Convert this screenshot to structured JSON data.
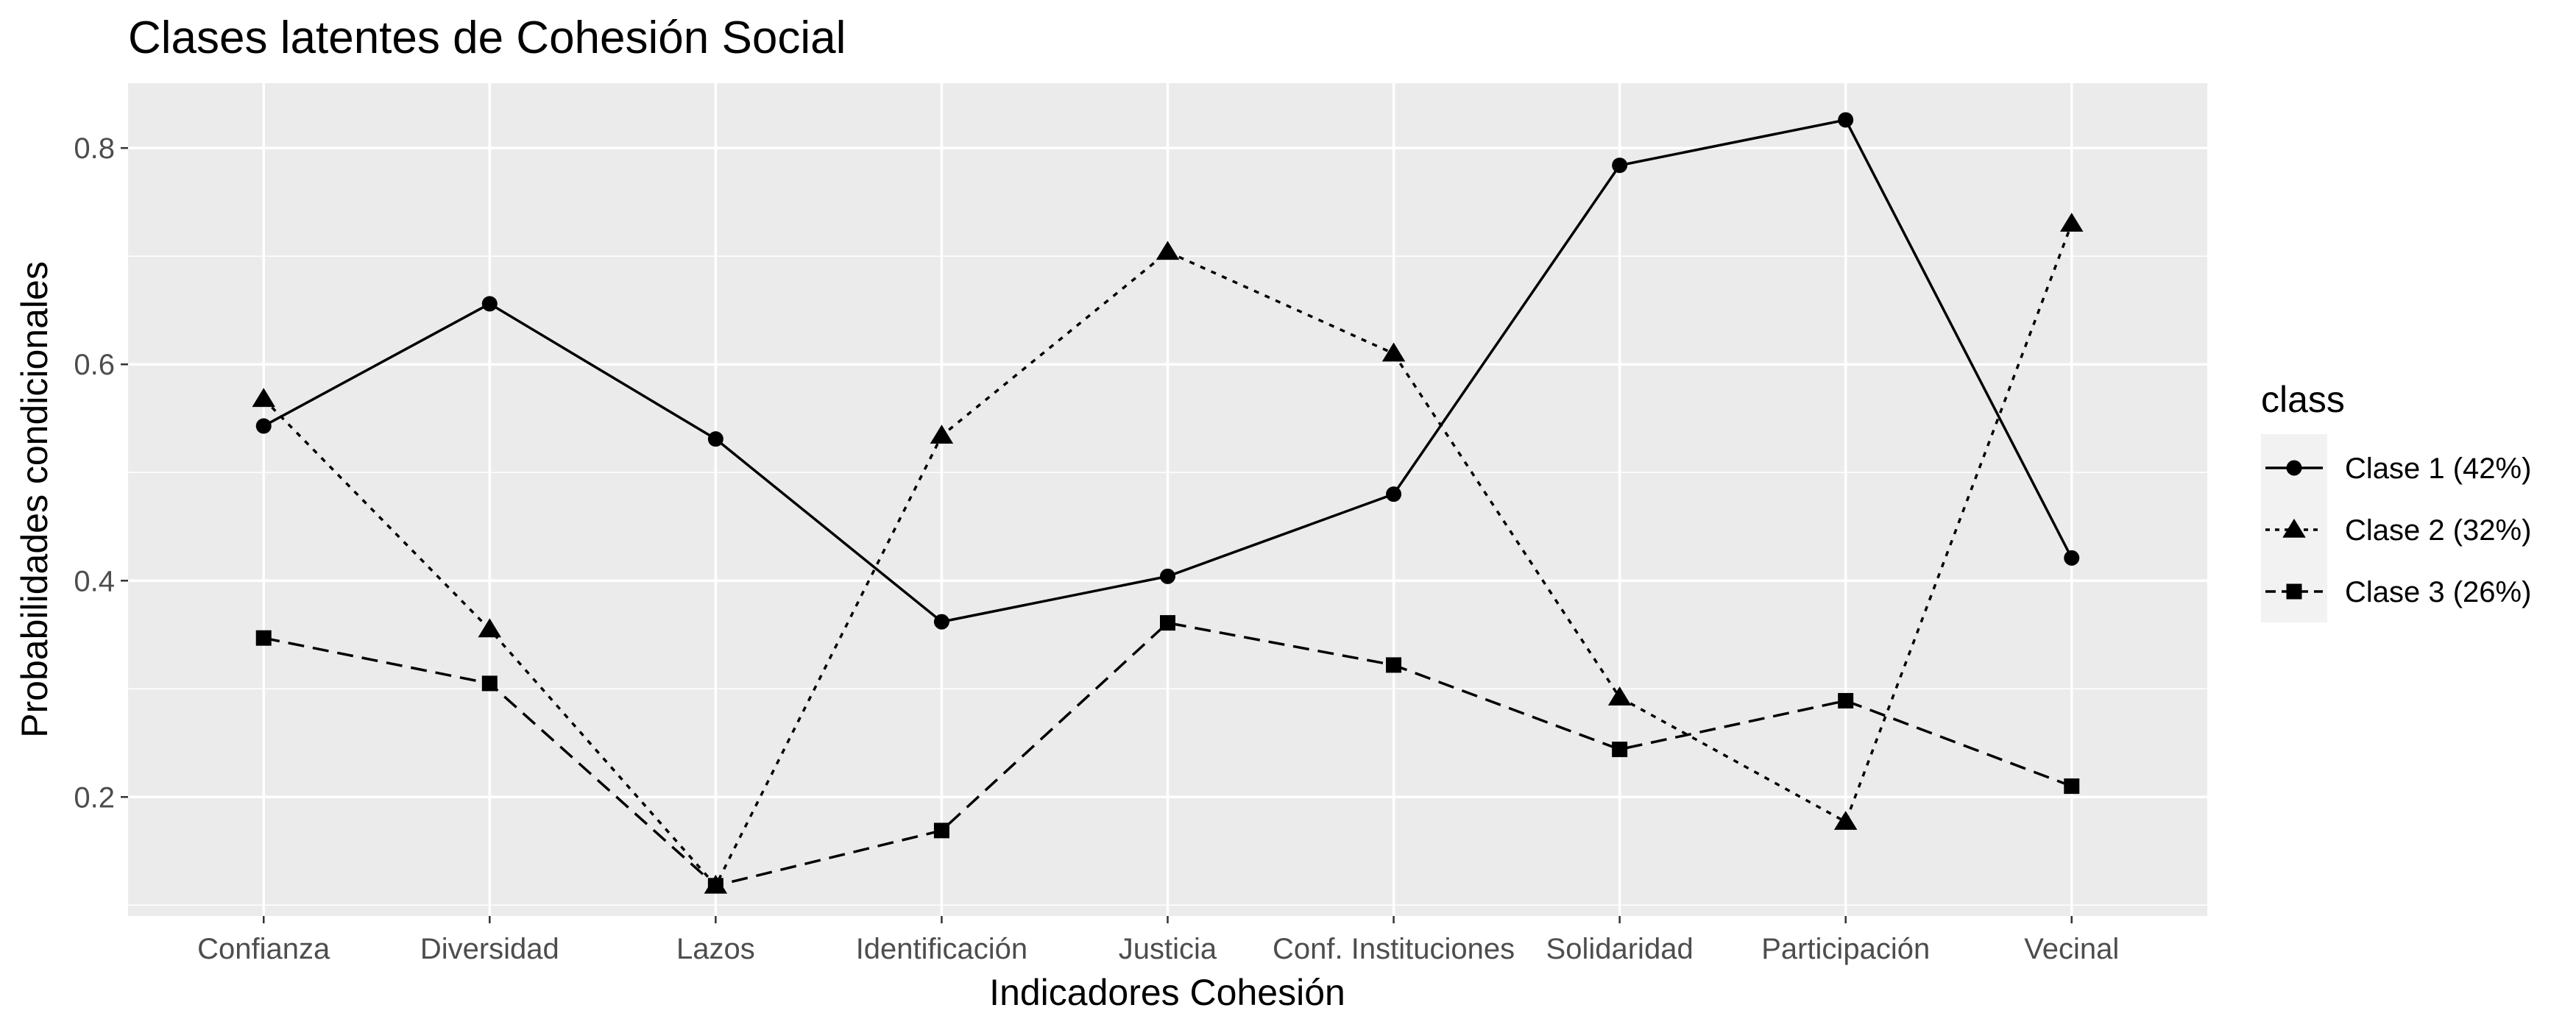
{
  "chart_data": {
    "type": "line",
    "title": "Clases latentes de Cohesión Social",
    "xlabel": "Indicadores Cohesión",
    "ylabel": "Probabilidades condicionales",
    "categories": [
      "Confianza",
      "Diversidad",
      "Lazos",
      "Identificación",
      "Justicia",
      "Conf. Instituciones",
      "Solidaridad",
      "Participación",
      "Vecinal"
    ],
    "yticks": [
      0.2,
      0.4,
      0.6,
      0.8
    ],
    "ylim": [
      0.09,
      0.86
    ],
    "grid": true,
    "legend": {
      "title": "class",
      "position": "right"
    },
    "series": [
      {
        "name": "Clase 1 (42%)",
        "marker": "circle",
        "dash": "solid",
        "values": [
          0.543,
          0.656,
          0.531,
          0.362,
          0.404,
          0.48,
          0.784,
          0.826,
          0.421
        ]
      },
      {
        "name": "Clase 2 (32%)",
        "marker": "triangle",
        "dash": "dotted",
        "values": [
          0.568,
          0.355,
          0.118,
          0.534,
          0.704,
          0.61,
          0.292,
          0.177,
          0.73
        ]
      },
      {
        "name": "Clase 3 (26%)",
        "marker": "square",
        "dash": "dashed",
        "values": [
          0.347,
          0.305,
          0.118,
          0.169,
          0.361,
          0.322,
          0.244,
          0.289,
          0.21
        ]
      }
    ]
  }
}
